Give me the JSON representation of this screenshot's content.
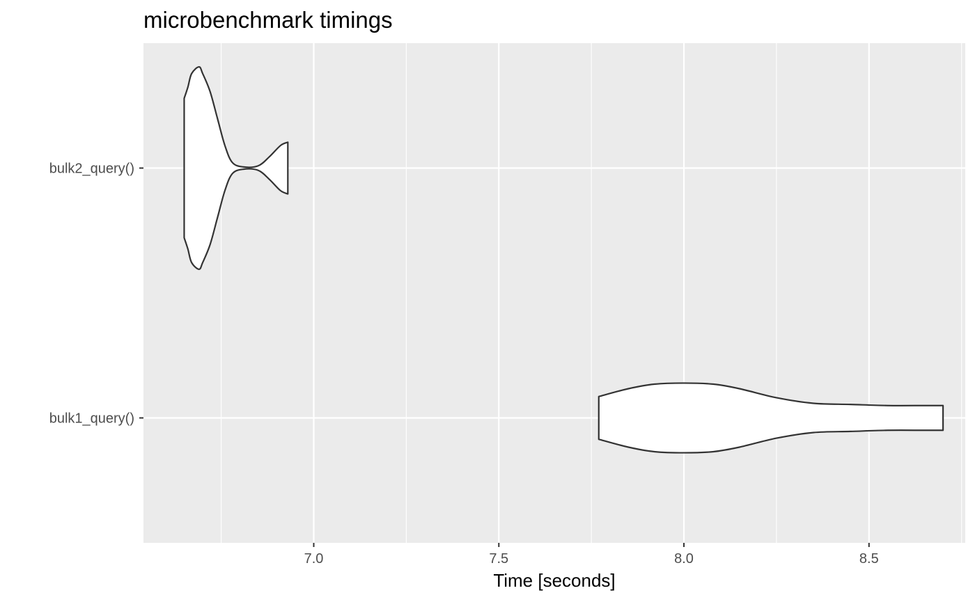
{
  "chart_data": {
    "type": "violin",
    "orientation": "horizontal",
    "title": "microbenchmark timings",
    "xlabel": "Time [seconds]",
    "ylabel": "",
    "xlim": [
      6.54,
      8.76
    ],
    "x_ticks": [
      7.0,
      7.5,
      8.0,
      8.5
    ],
    "x_tick_labels": [
      "7.0",
      "7.5",
      "8.0",
      "8.5"
    ],
    "categories": [
      "bulk2_query()",
      "bulk1_query()"
    ],
    "grid": true,
    "legend": "none",
    "series": [
      {
        "category": "bulk2_query()",
        "min": 6.65,
        "max": 6.93,
        "density_profile": [
          {
            "t": 6.65,
            "w": 0.62
          },
          {
            "t": 6.66,
            "w": 0.72
          },
          {
            "t": 6.67,
            "w": 0.84
          },
          {
            "t": 6.69,
            "w": 0.9
          },
          {
            "t": 6.7,
            "w": 0.84
          },
          {
            "t": 6.72,
            "w": 0.68
          },
          {
            "t": 6.74,
            "w": 0.44
          },
          {
            "t": 6.76,
            "w": 0.2
          },
          {
            "t": 6.78,
            "w": 0.05
          },
          {
            "t": 6.81,
            "w": 0.01
          },
          {
            "t": 6.85,
            "w": 0.02
          },
          {
            "t": 6.88,
            "w": 0.1
          },
          {
            "t": 6.91,
            "w": 0.2
          },
          {
            "t": 6.93,
            "w": 0.23
          }
        ]
      },
      {
        "category": "bulk1_query()",
        "min": 7.77,
        "max": 8.7,
        "density_profile": [
          {
            "t": 7.77,
            "w": 0.19
          },
          {
            "t": 7.85,
            "w": 0.26
          },
          {
            "t": 7.92,
            "w": 0.3
          },
          {
            "t": 8.0,
            "w": 0.31
          },
          {
            "t": 8.08,
            "w": 0.3
          },
          {
            "t": 8.15,
            "w": 0.26
          },
          {
            "t": 8.25,
            "w": 0.18
          },
          {
            "t": 8.35,
            "w": 0.13
          },
          {
            "t": 8.45,
            "w": 0.12
          },
          {
            "t": 8.55,
            "w": 0.11
          },
          {
            "t": 8.65,
            "w": 0.11
          },
          {
            "t": 8.7,
            "w": 0.11
          }
        ]
      }
    ],
    "colors": {
      "panel_background": "#ebebeb",
      "grid_line": "#ffffff",
      "violin_fill": "#ffffff",
      "violin_outline": "#333333",
      "tick_text": "#4d4d4d",
      "tick_mark": "#333333"
    }
  }
}
